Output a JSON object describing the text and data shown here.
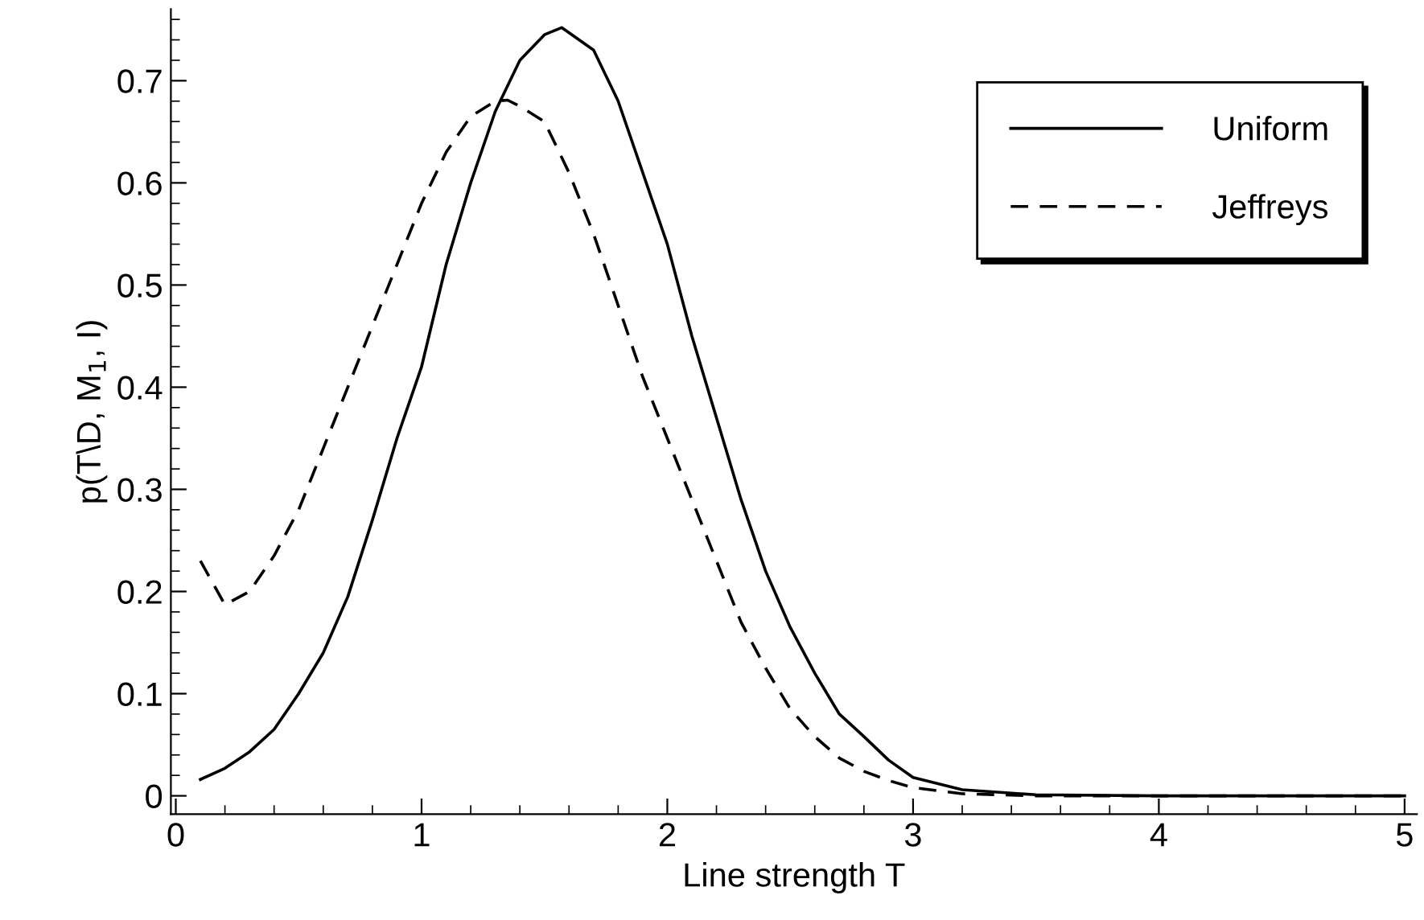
{
  "chart_data": {
    "type": "line",
    "xlabel": "Line strength T",
    "ylabel": "p(T\\D, M$_{1}$, I)",
    "xlim": [
      -0.02,
      5.05
    ],
    "ylim": [
      -0.018,
      0.77
    ],
    "xticks": [
      0,
      1,
      2,
      3,
      4,
      5
    ],
    "yticks": [
      0,
      0.1,
      0.2,
      0.3,
      0.4,
      0.5,
      0.6,
      0.7
    ],
    "grid": false,
    "legend": "top right",
    "marker": "none",
    "series": [
      {
        "name": "Uniform",
        "color": "#000000",
        "line_style": "solid",
        "x": [
          0.1,
          0.2,
          0.3,
          0.4,
          0.5,
          0.6,
          0.7,
          0.8,
          0.9,
          1.0,
          1.1,
          1.2,
          1.3,
          1.4,
          1.5,
          1.57,
          1.7,
          1.8,
          1.9,
          2.0,
          2.1,
          2.2,
          2.3,
          2.4,
          2.5,
          2.6,
          2.7,
          2.8,
          2.9,
          3.0,
          3.2,
          3.5,
          4.0,
          5.0
        ],
        "values": [
          0.016,
          0.027,
          0.043,
          0.065,
          0.1,
          0.14,
          0.195,
          0.27,
          0.35,
          0.42,
          0.52,
          0.6,
          0.67,
          0.72,
          0.745,
          0.752,
          0.73,
          0.68,
          0.61,
          0.54,
          0.45,
          0.37,
          0.29,
          0.22,
          0.165,
          0.12,
          0.08,
          0.058,
          0.035,
          0.018,
          0.006,
          0.001,
          0,
          0
        ]
      },
      {
        "name": "Jeffreys",
        "color": "#000000",
        "line_style": "dashed",
        "x": [
          0.1,
          0.2,
          0.3,
          0.4,
          0.5,
          0.6,
          0.7,
          0.8,
          0.9,
          1.0,
          1.1,
          1.2,
          1.3,
          1.35,
          1.4,
          1.5,
          1.6,
          1.7,
          1.8,
          1.9,
          2.0,
          2.1,
          2.2,
          2.3,
          2.4,
          2.5,
          2.6,
          2.7,
          2.8,
          2.9,
          3.0,
          3.2,
          3.5,
          4.0,
          5.0
        ],
        "values": [
          0.23,
          0.187,
          0.2,
          0.235,
          0.28,
          0.34,
          0.4,
          0.46,
          0.52,
          0.58,
          0.63,
          0.665,
          0.68,
          0.681,
          0.675,
          0.66,
          0.61,
          0.55,
          0.48,
          0.41,
          0.35,
          0.29,
          0.23,
          0.17,
          0.125,
          0.085,
          0.058,
          0.037,
          0.024,
          0.015,
          0.008,
          0.002,
          0,
          0,
          0
        ]
      }
    ]
  }
}
